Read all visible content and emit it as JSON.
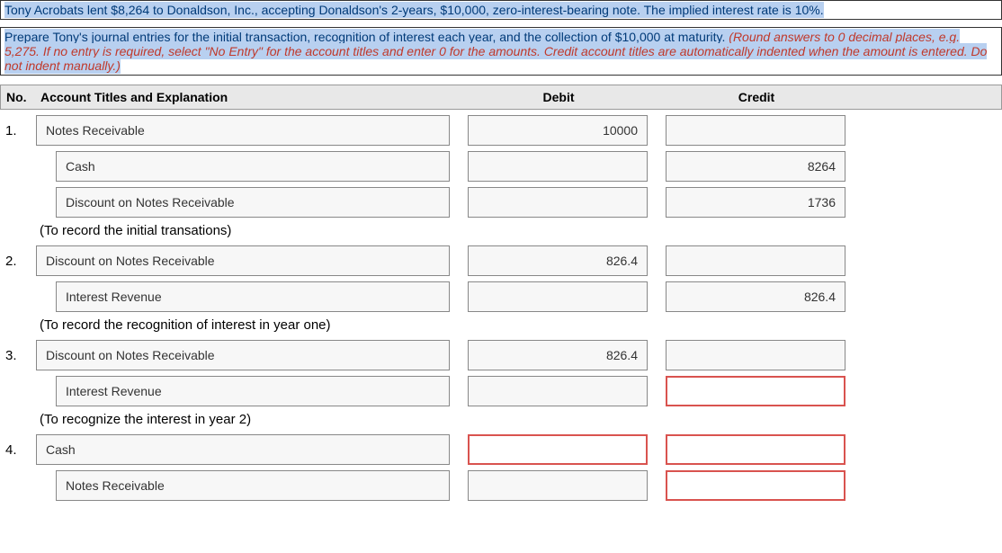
{
  "question": {
    "line1": "Tony Acrobats lent $8,264 to Donaldson, Inc., accepting Donaldson's 2-years, $10,000, zero-interest-bearing note. The implied interest rate is 10%.",
    "line2_a": "Prepare Tony's journal entries for the initial transaction, recognition of interest each year, and the collection of $10,000 at maturity. ",
    "line2_b": "(Round answers to 0 decimal places, e.g. 5,275. If no entry is required, select \"No Entry\" for the account titles and enter 0 for the amounts. Credit account titles are automatically indented when the amount is entered. Do not indent manually.)"
  },
  "headers": {
    "no": "No.",
    "acct": "Account Titles and Explanation",
    "debit": "Debit",
    "credit": "Credit"
  },
  "rows": [
    {
      "num": "1.",
      "acct": "Notes Receivable",
      "indent": false,
      "debit": "10000",
      "credit": "",
      "debit_err": false,
      "credit_err": false
    },
    {
      "num": "",
      "acct": "Cash",
      "indent": true,
      "debit": "",
      "credit": "8264",
      "debit_err": false,
      "credit_err": false
    },
    {
      "num": "",
      "acct": "Discount on Notes Receivable",
      "indent": true,
      "debit": "",
      "credit": "1736",
      "debit_err": false,
      "credit_err": false
    },
    {
      "explain": "(To record the initial transations)"
    },
    {
      "num": "2.",
      "acct": "Discount on Notes Receivable",
      "indent": false,
      "debit": "826.4",
      "credit": "",
      "debit_err": false,
      "credit_err": false
    },
    {
      "num": "",
      "acct": "Interest Revenue",
      "indent": true,
      "debit": "",
      "credit": "826.4",
      "debit_err": false,
      "credit_err": false
    },
    {
      "explain": "(To record the recognition of interest in year one)"
    },
    {
      "num": "3.",
      "acct": "Discount on Notes Receivable",
      "indent": false,
      "debit": "826.4",
      "credit": "",
      "debit_err": false,
      "credit_err": false
    },
    {
      "num": "",
      "acct": "Interest Revenue",
      "indent": true,
      "debit": "",
      "credit": "",
      "debit_err": false,
      "credit_err": true
    },
    {
      "explain": "(To recognize the interest in year 2)"
    },
    {
      "num": "4.",
      "acct": "Cash",
      "indent": false,
      "debit": "",
      "credit": "",
      "debit_err": true,
      "credit_err": true
    },
    {
      "num": "",
      "acct": "Notes Receivable",
      "indent": true,
      "debit": "",
      "credit": "",
      "debit_err": false,
      "credit_err": true
    }
  ]
}
